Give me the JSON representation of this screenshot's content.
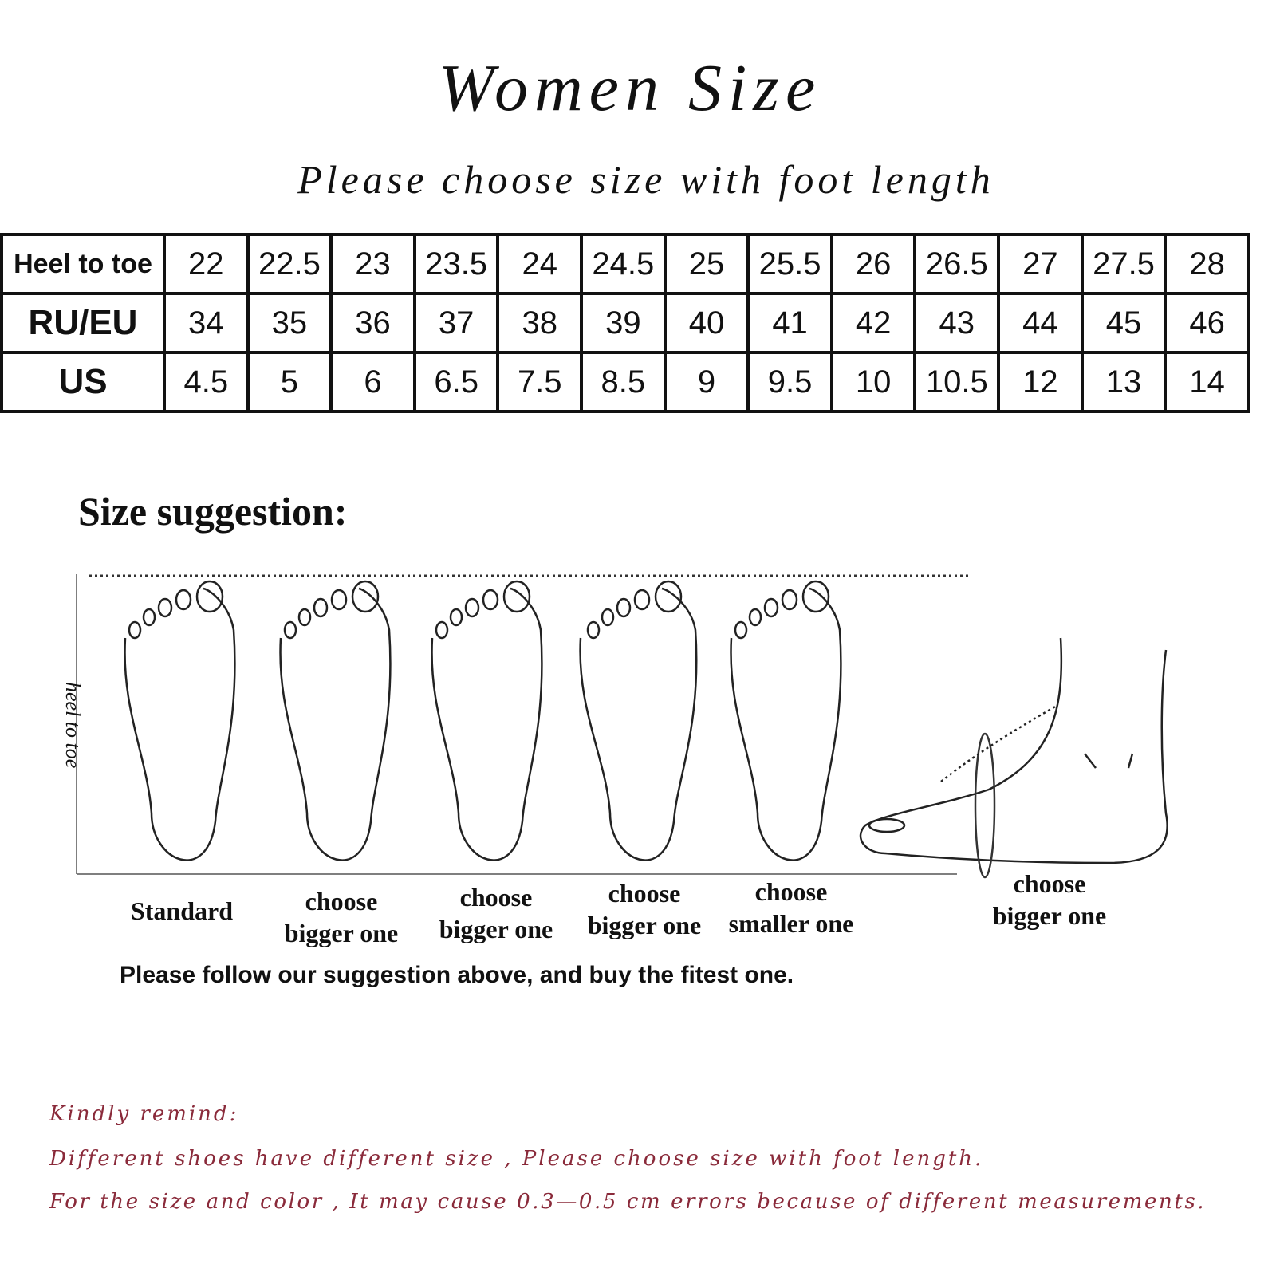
{
  "title": "Women Size",
  "subtitle": "Please choose size with foot length",
  "size_table": {
    "rows": [
      {
        "label": "Heel to toe",
        "values": [
          "22",
          "22.5",
          "23",
          "23.5",
          "24",
          "24.5",
          "25",
          "25.5",
          "26",
          "26.5",
          "27",
          "27.5",
          "28"
        ]
      },
      {
        "label": "RU/EU",
        "values": [
          "34",
          "35",
          "36",
          "37",
          "38",
          "39",
          "40",
          "41",
          "42",
          "43",
          "44",
          "45",
          "46"
        ]
      },
      {
        "label": "US",
        "values": [
          "4.5",
          "5",
          "6",
          "6.5",
          "7.5",
          "8.5",
          "9",
          "9.5",
          "10",
          "10.5",
          "12",
          "13",
          "14"
        ]
      }
    ]
  },
  "suggestion": {
    "heading": "Size suggestion:",
    "axis_label": "heel to toe",
    "captions": [
      {
        "line1": "Standard",
        "line2": ""
      },
      {
        "line1": "choose",
        "line2": "bigger one"
      },
      {
        "line1": "choose",
        "line2": "bigger one"
      },
      {
        "line1": "choose",
        "line2": "bigger one"
      },
      {
        "line1": "choose",
        "line2": "smaller one"
      },
      {
        "line1": "choose",
        "line2": "bigger one"
      }
    ],
    "follow_text": "Please follow our suggestion above, and buy the fitest one."
  },
  "reminder": {
    "heading": "Kindly remind:",
    "line1": "Different shoes have different size , Please choose size with foot length.",
    "line2": "For the size and color , It may cause 0.3—0.5 cm errors because of different measurements.",
    "color": "#8a2a3a"
  }
}
